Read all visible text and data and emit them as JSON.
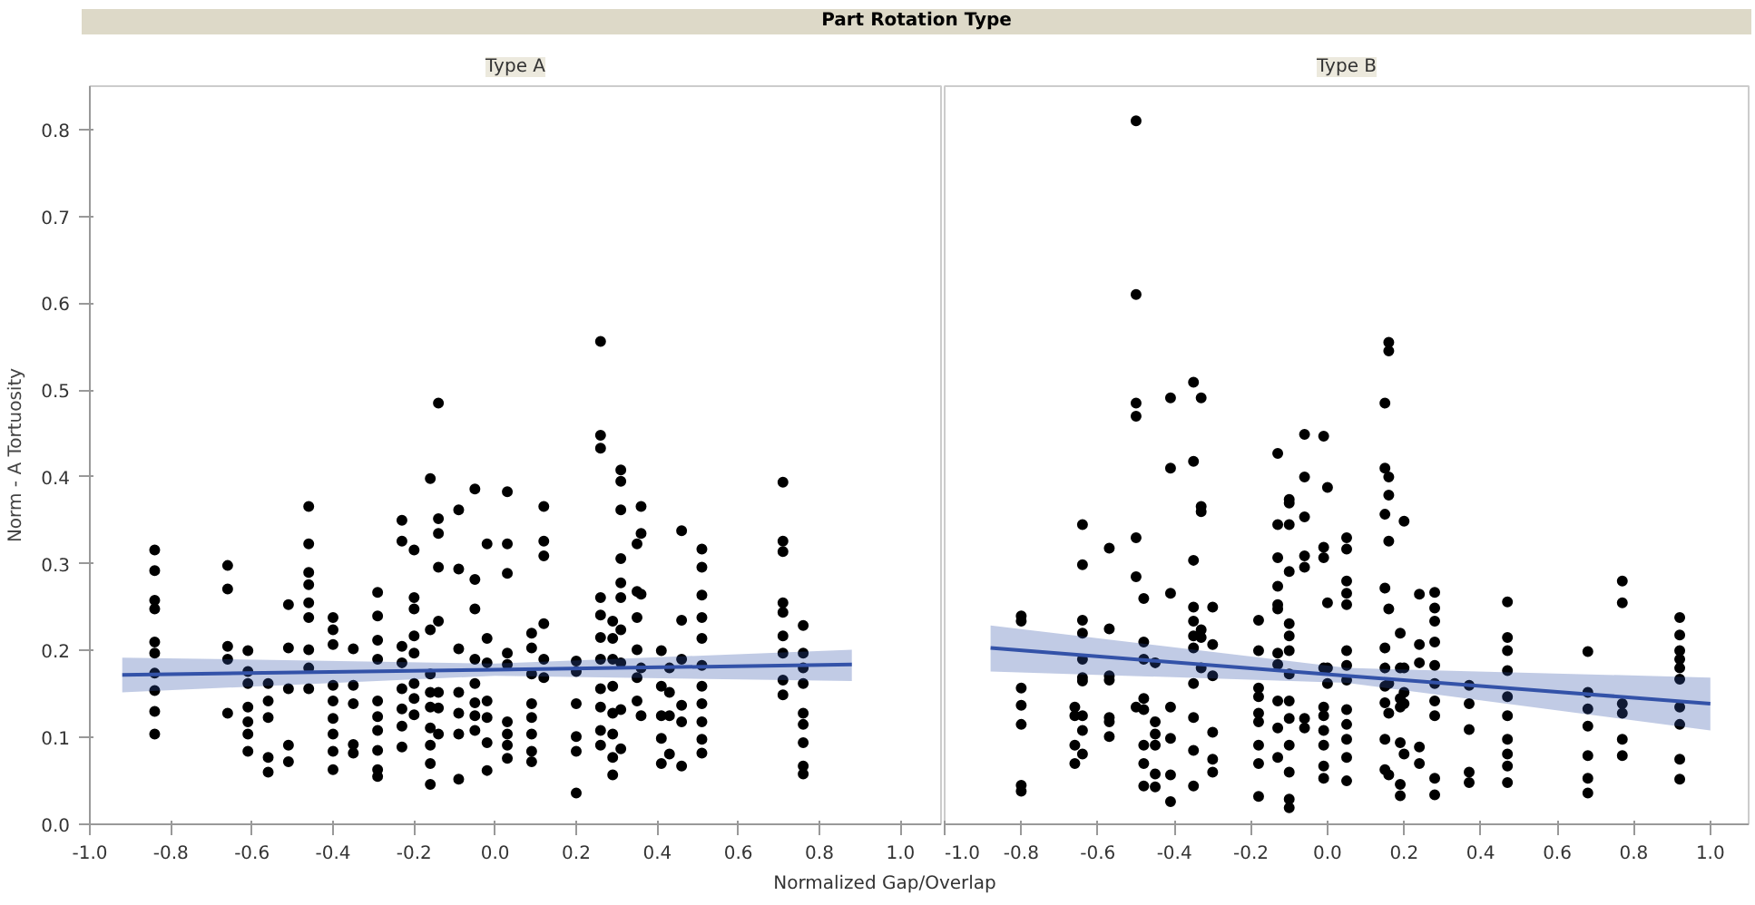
{
  "chart_data": [
    {
      "type": "scatter",
      "title": "Type A",
      "annotations": [
        "Part Rotation Type"
      ],
      "xlabel": "Normalized Gap/Overlap",
      "ylabel": "Norm - A Tortuosity",
      "grid": false,
      "xlim": [
        -1.0,
        1.1
      ],
      "ylim": [
        0,
        0.85
      ],
      "xticks": [
        {
          "value": -1.0,
          "label": "-1.0"
        },
        {
          "value": -0.8,
          "label": "-0.8"
        },
        {
          "value": -0.6,
          "label": "-0.6"
        },
        {
          "value": -0.4,
          "label": "-0.4"
        },
        {
          "value": -0.2,
          "label": "-0.2"
        },
        {
          "value": 0,
          "label": "0.0"
        },
        {
          "value": 0.2,
          "label": "0.2"
        },
        {
          "value": 0.4,
          "label": "0.4"
        },
        {
          "value": 0.6,
          "label": "0.6"
        },
        {
          "value": 0.8,
          "label": "0.8"
        },
        {
          "value": 1.0,
          "label": "1.0"
        }
      ],
      "yticks": [
        {
          "value": 0,
          "label": "0.0"
        },
        0.1,
        0.2,
        0.3,
        0.4,
        0.5,
        0.6,
        0.7,
        0.8
      ],
      "series": [
        {
          "marker": "circle",
          "color": "#000000",
          "x": [
            -0.84,
            -0.84,
            -0.84,
            -0.84,
            -0.84,
            -0.84,
            -0.84,
            -0.84,
            -0.84,
            -0.84,
            -0.66,
            -0.66,
            -0.66,
            -0.66,
            -0.66,
            -0.61,
            -0.61,
            -0.61,
            -0.61,
            -0.61,
            -0.61,
            -0.61,
            -0.56,
            -0.56,
            -0.56,
            -0.56,
            -0.56,
            -0.51,
            -0.51,
            -0.51,
            -0.51,
            -0.51,
            -0.46,
            -0.46,
            -0.46,
            -0.46,
            -0.46,
            -0.46,
            -0.46,
            -0.46,
            -0.46,
            -0.4,
            -0.4,
            -0.4,
            -0.4,
            -0.4,
            -0.4,
            -0.4,
            -0.4,
            -0.4,
            -0.35,
            -0.35,
            -0.35,
            -0.35,
            -0.35,
            -0.29,
            -0.29,
            -0.29,
            -0.29,
            -0.29,
            -0.29,
            -0.29,
            -0.29,
            -0.29,
            -0.29,
            -0.23,
            -0.23,
            -0.23,
            -0.23,
            -0.23,
            -0.23,
            -0.23,
            -0.23,
            -0.2,
            -0.2,
            -0.2,
            -0.2,
            -0.2,
            -0.2,
            -0.2,
            -0.2,
            -0.16,
            -0.16,
            -0.16,
            -0.16,
            -0.16,
            -0.16,
            -0.16,
            -0.16,
            -0.16,
            -0.14,
            -0.14,
            -0.14,
            -0.14,
            -0.14,
            -0.14,
            -0.14,
            -0.14,
            -0.09,
            -0.09,
            -0.09,
            -0.09,
            -0.09,
            -0.09,
            -0.09,
            -0.05,
            -0.05,
            -0.05,
            -0.05,
            -0.05,
            -0.05,
            -0.05,
            -0.05,
            -0.02,
            -0.02,
            -0.02,
            -0.02,
            -0.02,
            -0.02,
            -0.02,
            0.03,
            0.03,
            0.03,
            0.03,
            0.03,
            0.03,
            0.03,
            0.03,
            0.03,
            0.09,
            0.09,
            0.09,
            0.09,
            0.09,
            0.09,
            0.09,
            0.09,
            0.12,
            0.12,
            0.12,
            0.12,
            0.12,
            0.12,
            0.2,
            0.2,
            0.2,
            0.2,
            0.2,
            0.2,
            0.26,
            0.26,
            0.26,
            0.26,
            0.26,
            0.26,
            0.26,
            0.26,
            0.26,
            0.26,
            0.26,
            0.29,
            0.29,
            0.29,
            0.29,
            0.29,
            0.29,
            0.29,
            0.29,
            0.31,
            0.31,
            0.31,
            0.31,
            0.31,
            0.31,
            0.31,
            0.31,
            0.31,
            0.31,
            0.35,
            0.35,
            0.35,
            0.35,
            0.35,
            0.35,
            0.36,
            0.36,
            0.36,
            0.36,
            0.36,
            0.41,
            0.41,
            0.41,
            0.41,
            0.41,
            0.43,
            0.43,
            0.43,
            0.43,
            0.46,
            0.46,
            0.46,
            0.46,
            0.46,
            0.46,
            0.51,
            0.51,
            0.51,
            0.51,
            0.51,
            0.51,
            0.51,
            0.51,
            0.51,
            0.51,
            0.51,
            0.71,
            0.71,
            0.71,
            0.71,
            0.71,
            0.71,
            0.71,
            0.71,
            0.71,
            0.76,
            0.76,
            0.76,
            0.76,
            0.76,
            0.76,
            0.76,
            0.76,
            0.76
          ],
          "values": [
            0.316,
            0.292,
            0.258,
            0.248,
            0.21,
            0.197,
            0.174,
            0.154,
            0.13,
            0.104,
            0.298,
            0.271,
            0.205,
            0.19,
            0.128,
            0.2,
            0.176,
            0.162,
            0.135,
            0.118,
            0.104,
            0.084,
            0.162,
            0.142,
            0.123,
            0.077,
            0.06,
            0.253,
            0.203,
            0.156,
            0.091,
            0.072,
            0.366,
            0.323,
            0.29,
            0.276,
            0.255,
            0.238,
            0.201,
            0.18,
            0.156,
            0.238,
            0.224,
            0.207,
            0.16,
            0.142,
            0.122,
            0.104,
            0.084,
            0.063,
            0.202,
            0.16,
            0.139,
            0.092,
            0.082,
            0.267,
            0.24,
            0.212,
            0.19,
            0.142,
            0.124,
            0.108,
            0.085,
            0.063,
            0.055,
            0.35,
            0.326,
            0.205,
            0.186,
            0.156,
            0.133,
            0.113,
            0.089,
            0.316,
            0.261,
            0.248,
            0.217,
            0.197,
            0.162,
            0.145,
            0.126,
            0.398,
            0.224,
            0.173,
            0.152,
            0.135,
            0.111,
            0.091,
            0.07,
            0.046,
            0.485,
            0.352,
            0.335,
            0.296,
            0.234,
            0.152,
            0.134,
            0.104,
            0.362,
            0.294,
            0.202,
            0.152,
            0.128,
            0.104,
            0.052,
            0.386,
            0.282,
            0.248,
            0.19,
            0.162,
            0.14,
            0.125,
            0.108,
            0.323,
            0.214,
            0.186,
            0.142,
            0.123,
            0.094,
            0.062,
            0.383,
            0.323,
            0.289,
            0.197,
            0.184,
            0.118,
            0.104,
            0.091,
            0.076,
            0.22,
            0.203,
            0.173,
            0.139,
            0.123,
            0.104,
            0.084,
            0.072,
            0.366,
            0.326,
            0.309,
            0.231,
            0.19,
            0.169,
            0.188,
            0.176,
            0.139,
            0.101,
            0.084,
            0.036,
            0.556,
            0.448,
            0.433,
            0.261,
            0.241,
            0.215,
            0.19,
            0.156,
            0.135,
            0.108,
            0.091,
            0.234,
            0.214,
            0.19,
            0.159,
            0.128,
            0.104,
            0.077,
            0.057,
            0.408,
            0.395,
            0.362,
            0.306,
            0.278,
            0.261,
            0.224,
            0.186,
            0.132,
            0.087,
            0.323,
            0.268,
            0.238,
            0.201,
            0.169,
            0.142,
            0.366,
            0.335,
            0.265,
            0.18,
            0.125,
            0.2,
            0.159,
            0.125,
            0.099,
            0.07,
            0.18,
            0.152,
            0.125,
            0.081,
            0.338,
            0.235,
            0.19,
            0.137,
            0.118,
            0.067,
            0.317,
            0.296,
            0.264,
            0.238,
            0.214,
            0.183,
            0.159,
            0.139,
            0.118,
            0.098,
            0.082,
            0.394,
            0.326,
            0.314,
            0.255,
            0.244,
            0.217,
            0.197,
            0.166,
            0.149,
            0.229,
            0.197,
            0.18,
            0.162,
            0.128,
            0.115,
            0.094,
            0.067,
            0.058
          ]
        },
        {
          "type": "line",
          "color": "#3352a8",
          "x": [
            -0.92,
            0.0,
            0.88
          ],
          "values": [
            0.172,
            0.178,
            0.184
          ],
          "lower": [
            0.152,
            0.171,
            0.165
          ],
          "upper": [
            0.192,
            0.185,
            0.201
          ]
        }
      ]
    },
    {
      "type": "scatter",
      "title": "Type B",
      "grid": false,
      "tick_labels": "x",
      "xlim": [
        -1.0,
        1.1
      ],
      "ylim": [
        0,
        0.85
      ],
      "xticks": [
        {
          "value": -1.0,
          "label": "-1.0"
        },
        {
          "value": -0.8,
          "label": "-0.8"
        },
        {
          "value": -0.6,
          "label": "-0.6"
        },
        {
          "value": -0.4,
          "label": "-0.4"
        },
        {
          "value": -0.2,
          "label": "-0.2"
        },
        {
          "value": 0,
          "label": "0.0"
        },
        {
          "value": 0.2,
          "label": "0.2"
        },
        {
          "value": 0.4,
          "label": "0.4"
        },
        {
          "value": 0.6,
          "label": "0.6"
        },
        {
          "value": 0.8,
          "label": "0.8"
        },
        {
          "value": 1.0,
          "label": "1.0"
        }
      ],
      "series": [
        {
          "marker": "circle",
          "color": "#000000",
          "x": [
            -0.8,
            -0.8,
            -0.8,
            -0.8,
            -0.8,
            -0.8,
            -0.8,
            -0.66,
            -0.66,
            -0.66,
            -0.66,
            -0.64,
            -0.64,
            -0.64,
            -0.64,
            -0.64,
            -0.64,
            -0.64,
            -0.64,
            -0.64,
            -0.64,
            -0.57,
            -0.57,
            -0.57,
            -0.57,
            -0.57,
            -0.57,
            -0.57,
            -0.5,
            -0.5,
            -0.5,
            -0.5,
            -0.5,
            -0.5,
            -0.5,
            -0.48,
            -0.48,
            -0.48,
            -0.48,
            -0.48,
            -0.48,
            -0.48,
            -0.48,
            -0.45,
            -0.45,
            -0.45,
            -0.45,
            -0.45,
            -0.45,
            -0.41,
            -0.41,
            -0.41,
            -0.41,
            -0.41,
            -0.41,
            -0.41,
            -0.35,
            -0.35,
            -0.35,
            -0.35,
            -0.35,
            -0.35,
            -0.35,
            -0.35,
            -0.35,
            -0.35,
            -0.35,
            -0.33,
            -0.33,
            -0.33,
            -0.33,
            -0.33,
            -0.33,
            -0.3,
            -0.3,
            -0.3,
            -0.3,
            -0.3,
            -0.3,
            -0.18,
            -0.18,
            -0.18,
            -0.18,
            -0.18,
            -0.18,
            -0.18,
            -0.18,
            -0.18,
            -0.13,
            -0.13,
            -0.13,
            -0.13,
            -0.13,
            -0.13,
            -0.13,
            -0.13,
            -0.13,
            -0.13,
            -0.13,
            -0.1,
            -0.1,
            -0.1,
            -0.1,
            -0.1,
            -0.1,
            -0.1,
            -0.1,
            -0.1,
            -0.1,
            -0.1,
            -0.1,
            -0.1,
            -0.1,
            -0.06,
            -0.06,
            -0.06,
            -0.06,
            -0.06,
            -0.06,
            -0.06,
            -0.01,
            -0.01,
            -0.01,
            -0.01,
            -0.01,
            -0.01,
            -0.01,
            -0.01,
            -0.01,
            -0.01,
            0.0,
            0.0,
            0.0,
            0.0,
            0.05,
            0.05,
            0.05,
            0.05,
            0.05,
            0.05,
            0.05,
            0.05,
            0.05,
            0.05,
            0.05,
            0.05,
            0.05,
            0.15,
            0.15,
            0.15,
            0.15,
            0.15,
            0.15,
            0.15,
            0.15,
            0.15,
            0.15,
            0.16,
            0.16,
            0.16,
            0.16,
            0.16,
            0.16,
            0.16,
            0.16,
            0.16,
            0.19,
            0.19,
            0.19,
            0.19,
            0.19,
            0.19,
            0.19,
            0.2,
            0.2,
            0.2,
            0.2,
            0.2,
            0.24,
            0.24,
            0.24,
            0.24,
            0.24,
            0.28,
            0.28,
            0.28,
            0.28,
            0.28,
            0.28,
            0.28,
            0.28,
            0.28,
            0.28,
            0.37,
            0.37,
            0.37,
            0.37,
            0.37,
            0.47,
            0.47,
            0.47,
            0.47,
            0.47,
            0.47,
            0.47,
            0.47,
            0.47,
            0.47,
            0.68,
            0.68,
            0.68,
            0.68,
            0.68,
            0.68,
            0.68,
            0.77,
            0.77,
            0.77,
            0.77,
            0.77,
            0.77,
            0.92,
            0.92,
            0.92,
            0.92,
            0.92,
            0.92,
            0.92,
            0.92,
            0.92,
            0.92
          ],
          "values": [
            0.24,
            0.234,
            0.157,
            0.137,
            0.115,
            0.045,
            0.038,
            0.135,
            0.125,
            0.091,
            0.07,
            0.345,
            0.299,
            0.235,
            0.22,
            0.19,
            0.169,
            0.165,
            0.125,
            0.108,
            0.081,
            0.318,
            0.225,
            0.171,
            0.166,
            0.123,
            0.118,
            0.101,
            0.81,
            0.61,
            0.485,
            0.47,
            0.33,
            0.285,
            0.135,
            0.26,
            0.21,
            0.19,
            0.145,
            0.132,
            0.091,
            0.07,
            0.044,
            0.186,
            0.118,
            0.104,
            0.091,
            0.058,
            0.043,
            0.491,
            0.41,
            0.266,
            0.135,
            0.099,
            0.057,
            0.026,
            0.509,
            0.418,
            0.304,
            0.25,
            0.234,
            0.217,
            0.203,
            0.162,
            0.123,
            0.085,
            0.044,
            0.491,
            0.366,
            0.36,
            0.224,
            0.215,
            0.18,
            0.25,
            0.207,
            0.171,
            0.106,
            0.075,
            0.06,
            0.235,
            0.2,
            0.157,
            0.147,
            0.128,
            0.118,
            0.091,
            0.07,
            0.032,
            0.427,
            0.345,
            0.307,
            0.274,
            0.253,
            0.248,
            0.197,
            0.184,
            0.142,
            0.111,
            0.077,
            0.374,
            0.37,
            0.345,
            0.291,
            0.231,
            0.217,
            0.2,
            0.173,
            0.142,
            0.122,
            0.091,
            0.06,
            0.029,
            0.019,
            0.449,
            0.4,
            0.354,
            0.309,
            0.296,
            0.122,
            0.111,
            0.447,
            0.319,
            0.307,
            0.18,
            0.135,
            0.125,
            0.108,
            0.091,
            0.067,
            0.053,
            0.388,
            0.255,
            0.18,
            0.162,
            0.33,
            0.317,
            0.28,
            0.266,
            0.253,
            0.2,
            0.183,
            0.166,
            0.132,
            0.115,
            0.098,
            0.077,
            0.05,
            0.485,
            0.41,
            0.357,
            0.272,
            0.203,
            0.18,
            0.159,
            0.14,
            0.098,
            0.063,
            0.555,
            0.545,
            0.4,
            0.379,
            0.326,
            0.248,
            0.162,
            0.128,
            0.057,
            0.22,
            0.18,
            0.145,
            0.135,
            0.094,
            0.046,
            0.033,
            0.349,
            0.18,
            0.152,
            0.139,
            0.081,
            0.265,
            0.207,
            0.186,
            0.089,
            0.07,
            0.267,
            0.249,
            0.234,
            0.21,
            0.183,
            0.162,
            0.142,
            0.125,
            0.053,
            0.034,
            0.16,
            0.139,
            0.109,
            0.06,
            0.048,
            0.256,
            0.215,
            0.2,
            0.177,
            0.147,
            0.125,
            0.098,
            0.081,
            0.067,
            0.048,
            0.199,
            0.152,
            0.133,
            0.113,
            0.079,
            0.053,
            0.036,
            0.28,
            0.255,
            0.139,
            0.128,
            0.098,
            0.079,
            0.238,
            0.218,
            0.2,
            0.19,
            0.18,
            0.167,
            0.135,
            0.115,
            0.075,
            0.052
          ]
        },
        {
          "type": "line",
          "color": "#3352a8",
          "x": [
            -0.88,
            0.05,
            1.0
          ],
          "values": [
            0.203,
            0.171,
            0.139
          ],
          "lower": [
            0.176,
            0.163,
            0.108
          ],
          "upper": [
            0.229,
            0.18,
            0.169
          ]
        }
      ]
    }
  ]
}
